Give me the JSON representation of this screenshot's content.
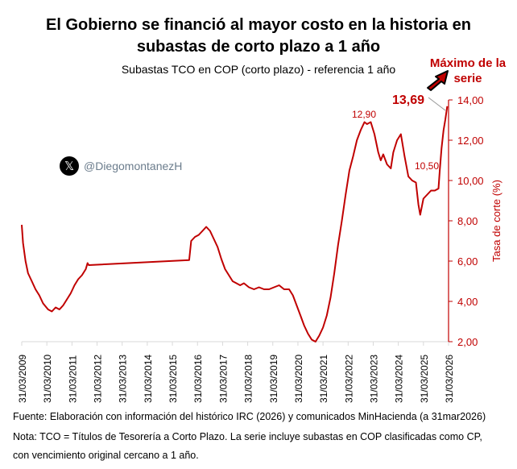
{
  "chart_data": {
    "type": "line",
    "title": "El Gobierno se financió al mayor costo en la historia en subastas de corto plazo a 1 año",
    "subtitle": "Subastas TCO en COP (corto plazo) - referencia 1 año",
    "ylabel": "Tasa de corte (%)",
    "ylim": [
      2,
      14
    ],
    "yticks": [
      "2,00",
      "4,00",
      "6,00",
      "8,00",
      "10,00",
      "12,00",
      "14,00"
    ],
    "xticks": [
      "31/03/2009",
      "31/03/2010",
      "31/03/2011",
      "31/03/2012",
      "31/03/2013",
      "31/03/2014",
      "31/03/2015",
      "31/03/2016",
      "31/03/2017",
      "31/03/2018",
      "31/03/2019",
      "31/03/2020",
      "31/03/2021",
      "31/03/2022",
      "31/03/2023",
      "31/03/2024",
      "31/03/2025",
      "31/03/2026"
    ],
    "grid": false,
    "series_color": "#c00000",
    "x": [
      2009.25,
      2009.3,
      2009.4,
      2009.5,
      2009.65,
      2009.8,
      2009.95,
      2010.1,
      2010.3,
      2010.45,
      2010.6,
      2010.75,
      2010.9,
      2011.05,
      2011.2,
      2011.35,
      2011.5,
      2011.65,
      2011.8,
      2011.87,
      2011.92,
      2015.92,
      2016.0,
      2016.15,
      2016.3,
      2016.45,
      2016.6,
      2016.75,
      2016.9,
      2017.05,
      2017.2,
      2017.35,
      2017.5,
      2017.65,
      2017.8,
      2017.95,
      2018.1,
      2018.3,
      2018.5,
      2018.7,
      2018.9,
      2019.1,
      2019.3,
      2019.5,
      2019.7,
      2019.9,
      2020.05,
      2020.2,
      2020.35,
      2020.5,
      2020.65,
      2020.8,
      2020.95,
      2021.1,
      2021.25,
      2021.4,
      2021.55,
      2021.7,
      2021.85,
      2022.0,
      2022.15,
      2022.3,
      2022.45,
      2022.6,
      2022.75,
      2022.9,
      2023.0,
      2023.15,
      2023.3,
      2023.45,
      2023.55,
      2023.65,
      2023.8,
      2023.95,
      2024.05,
      2024.2,
      2024.35,
      2024.5,
      2024.65,
      2024.8,
      2024.95,
      2025.05,
      2025.12,
      2025.25,
      2025.4,
      2025.55,
      2025.7,
      2025.85,
      2025.9,
      2025.97,
      2026.05,
      2026.12,
      2026.2
    ],
    "y": [
      7.8,
      6.9,
      6.0,
      5.4,
      5.0,
      4.6,
      4.3,
      3.9,
      3.6,
      3.5,
      3.7,
      3.6,
      3.8,
      4.1,
      4.4,
      4.8,
      5.1,
      5.3,
      5.6,
      5.9,
      5.8,
      6.05,
      7.0,
      7.2,
      7.3,
      7.5,
      7.7,
      7.5,
      7.1,
      6.7,
      6.1,
      5.6,
      5.3,
      5.0,
      4.9,
      4.8,
      4.9,
      4.7,
      4.6,
      4.7,
      4.6,
      4.6,
      4.7,
      4.8,
      4.6,
      4.6,
      4.3,
      3.8,
      3.3,
      2.8,
      2.4,
      2.1,
      2.0,
      2.3,
      2.7,
      3.3,
      4.2,
      5.4,
      6.8,
      8.0,
      9.3,
      10.5,
      11.2,
      12.0,
      12.5,
      12.9,
      12.8,
      12.9,
      12.3,
      11.4,
      11.0,
      11.3,
      10.8,
      10.6,
      11.4,
      12.0,
      12.3,
      11.2,
      10.2,
      10.0,
      9.9,
      8.8,
      8.3,
      9.1,
      9.3,
      9.5,
      9.5,
      9.6,
      10.5,
      11.6,
      12.5,
      13.0,
      13.69
    ],
    "annotations": {
      "peak_2023": "12,90",
      "level_2025": "10,50",
      "max_value": "13,69",
      "max_label": "Máximo de la serie"
    }
  },
  "handle": {
    "icon": "x-logo-icon",
    "text": "@DiegomontanezH"
  },
  "notes": {
    "source": "Fuente: Elaboración con información del histórico IRC (2026) y comunicados MinHacienda (a 31mar2026)",
    "note1": "Nota: TCO = Títulos de Tesorería a Corto Plazo. La serie incluye subastas en COP clasificadas como CP,",
    "note2": "con vencimiento original cercano a 1 año."
  }
}
